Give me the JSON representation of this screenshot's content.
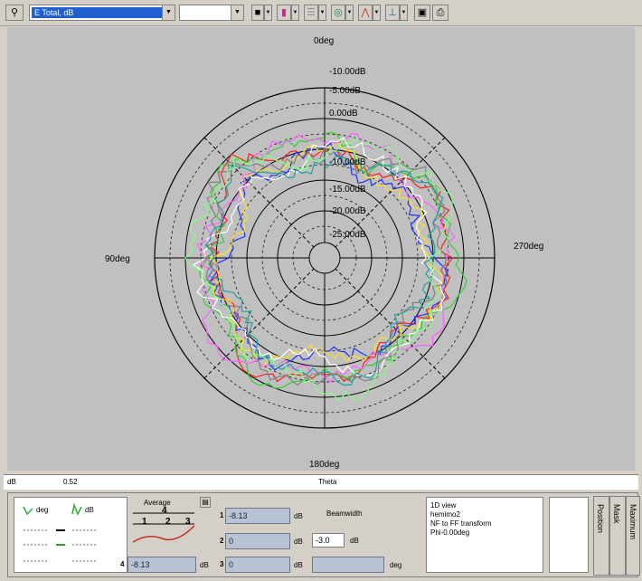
{
  "toolbar": {
    "combo1_value": "E Total, dB",
    "combo2_value": "",
    "pin_icon": "pin-icon"
  },
  "polar": {
    "angle_labels": {
      "top": "0deg",
      "left": "90deg",
      "right": "270deg",
      "bottom": "180deg"
    },
    "ring_labels": [
      "-10.00dB",
      "-5.00dB",
      "0.00dB",
      "-10.00dB",
      "-15.00dB",
      "-20.00dB",
      "-25.00dB"
    ],
    "series_colors": [
      "#ff2020",
      "#2030ff",
      "#30d030",
      "#ffe020",
      "#ff60ff",
      "#ffffff",
      "#808080",
      "#20a0a0",
      "#80ff80"
    ]
  },
  "statusbar": {
    "unit": "dB",
    "value": "0.52",
    "axis": "Theta"
  },
  "panel": {
    "legend_deg": "deg",
    "legend_db": "dB",
    "average_label": "Average",
    "average_numbers": [
      "4",
      "1",
      "2",
      "3"
    ],
    "marker_values": [
      {
        "num": "1",
        "value": "-8.13",
        "unit": "dB"
      },
      {
        "num": "2",
        "value": "0",
        "unit": "dB"
      },
      {
        "num": "3",
        "value": "0",
        "unit": "dB"
      }
    ],
    "marker4": {
      "num": "4",
      "value": "-8.13",
      "unit": "dB"
    },
    "beamwidth_label": "Beamwidth",
    "beamwidth_value": "-3.0",
    "beamwidth_unit": "dB",
    "beamwidth_deg_unit": "deg",
    "info_lines": [
      "1D view",
      "hemimo2",
      "NF to FF transform",
      "Phi-0.00deg"
    ],
    "tabs": [
      "Position",
      "Mask",
      "Maximum"
    ]
  }
}
